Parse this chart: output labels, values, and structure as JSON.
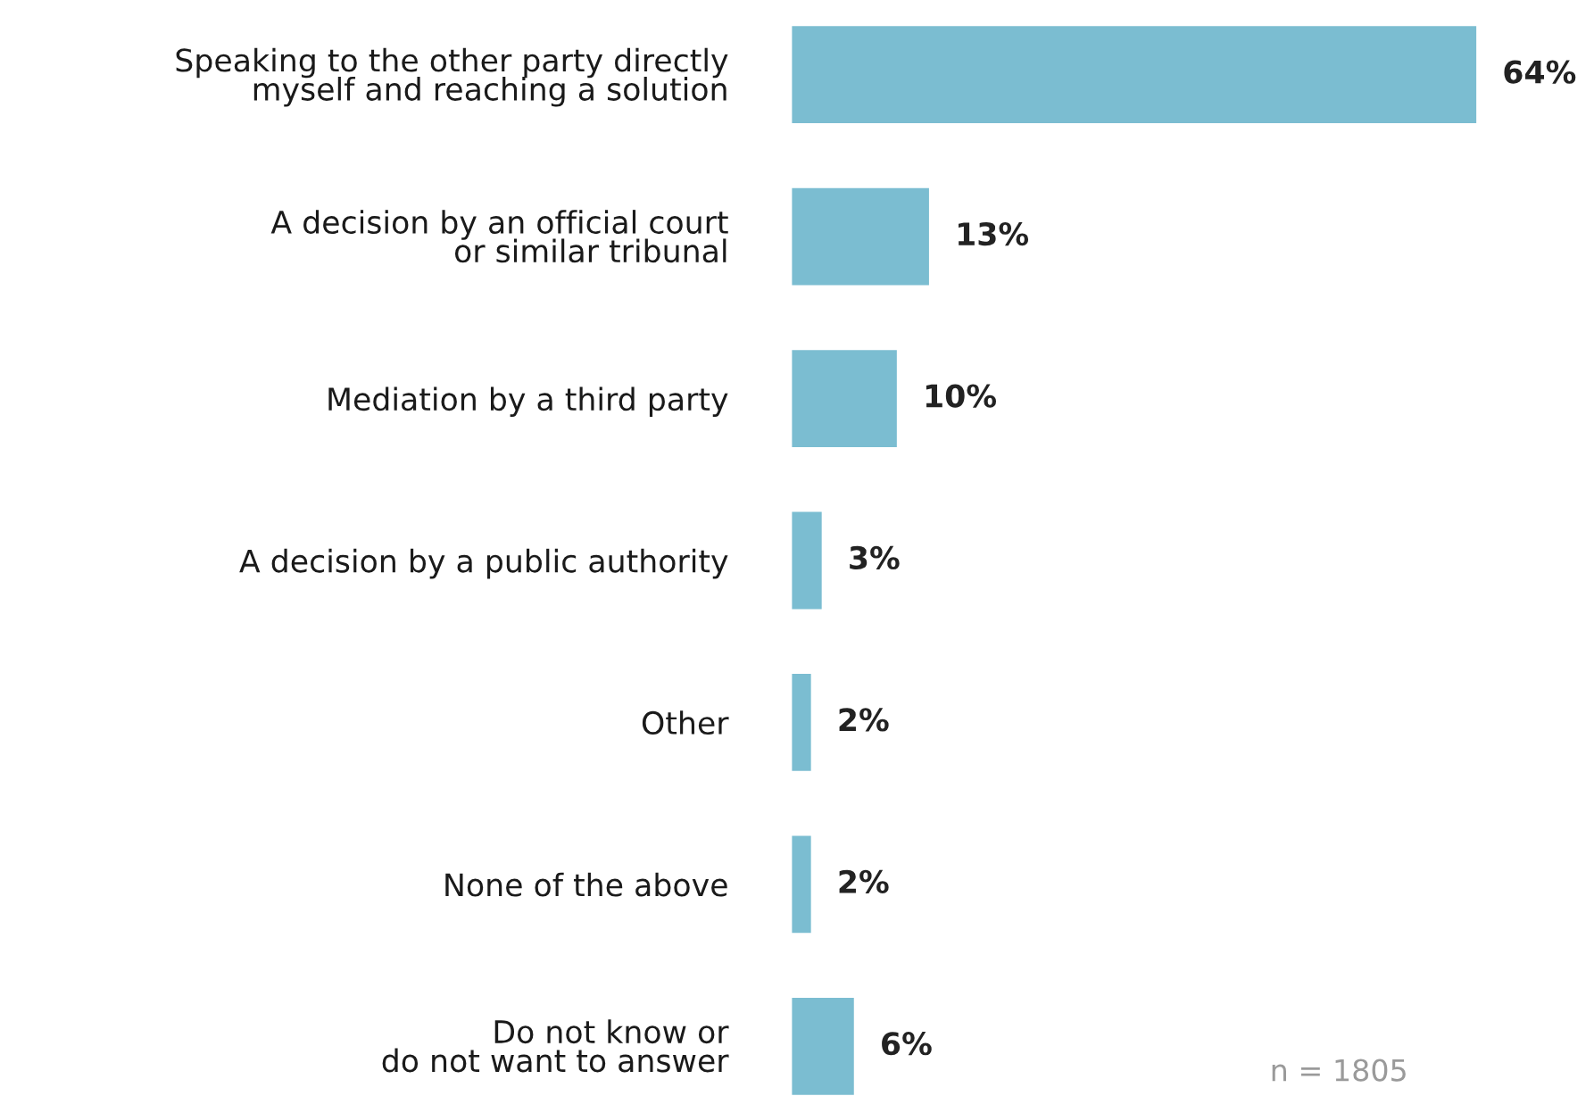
{
  "chart_data": {
    "type": "bar",
    "orientation": "horizontal",
    "categories": [
      "Speaking to the other party directly\nmyself and reaching a solution",
      "A decision by an official court\nor similar tribunal",
      "Mediation by a third party",
      "A decision by a public authority",
      "Other",
      "None of the above",
      "Do not know or\ndo not want to answer"
    ],
    "values": [
      64,
      13,
      10,
      3,
      2,
      2,
      6
    ],
    "value_labels": [
      "64%",
      "13%",
      "10%",
      "3%",
      "2%",
      "2%",
      "6%"
    ],
    "color": "#7bbdd1",
    "tick_labels": "y",
    "grid": false,
    "legend": false,
    "annotations": [
      "n = 1805"
    ]
  }
}
